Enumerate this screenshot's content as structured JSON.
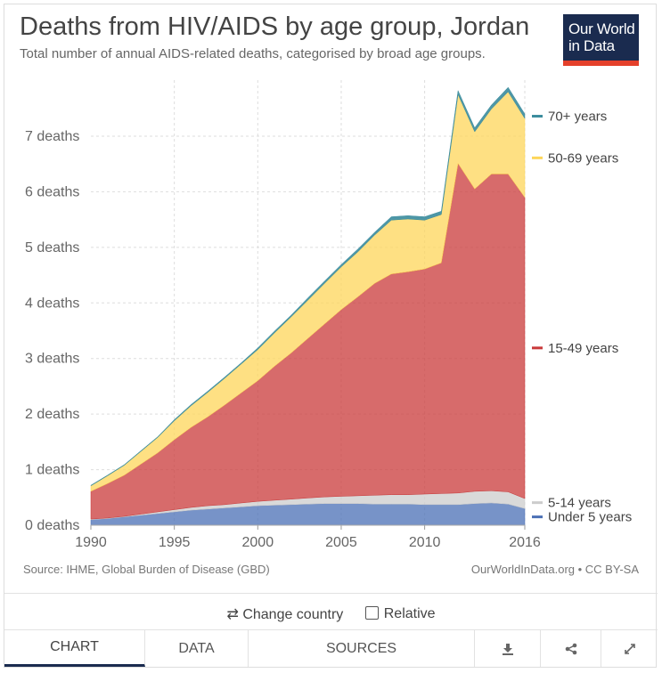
{
  "header": {
    "title": "Deaths from HIV/AIDS by age group, Jordan",
    "subtitle": "Total number of annual AIDS-related deaths, categorised by broad age groups.",
    "logo_line1": "Our World",
    "logo_line2": "in Data"
  },
  "footer": {
    "source": "Source: IHME, Global Burden of Disease (GBD)",
    "credit": "OurWorldInData.org • CC BY-SA"
  },
  "controls": {
    "change_country": "Change country",
    "change_country_icon": "swap-arrows-icon",
    "relative": "Relative"
  },
  "tabs": {
    "chart": "CHART",
    "data": "DATA",
    "sources": "SOURCES",
    "download_icon": "download-icon",
    "share_icon": "share-icon",
    "expand_icon": "expand-icon"
  },
  "chart_data": {
    "type": "area",
    "stacked": true,
    "title": "Deaths from HIV/AIDS by age group, Jordan",
    "subtitle": "Total number of annual AIDS-related deaths, categorised by broad age groups.",
    "x": [
      1990,
      1991,
      1992,
      1993,
      1994,
      1995,
      1996,
      1997,
      1998,
      1999,
      2000,
      2001,
      2002,
      2003,
      2004,
      2005,
      2006,
      2007,
      2008,
      2009,
      2010,
      2011,
      2012,
      2013,
      2014,
      2015,
      2016
    ],
    "ylim": [
      0,
      8
    ],
    "yticks": [
      0,
      1,
      2,
      3,
      4,
      5,
      6,
      7
    ],
    "ytick_labels": [
      "0 deaths",
      "1 deaths",
      "2 deaths",
      "3 deaths",
      "4 deaths",
      "5 deaths",
      "6 deaths",
      "7 deaths"
    ],
    "xticks": [
      1990,
      1995,
      2000,
      2005,
      2010,
      2016
    ],
    "xtick_labels": [
      "1990",
      "1995",
      "2000",
      "2005",
      "2010",
      "2016"
    ],
    "grid": true,
    "legend": "right",
    "series": [
      {
        "name": "Under 5 years",
        "color": "#4a6fb5",
        "values": [
          0.1,
          0.12,
          0.15,
          0.18,
          0.21,
          0.24,
          0.27,
          0.29,
          0.31,
          0.33,
          0.35,
          0.36,
          0.37,
          0.38,
          0.39,
          0.39,
          0.39,
          0.38,
          0.38,
          0.38,
          0.37,
          0.37,
          0.37,
          0.39,
          0.4,
          0.38,
          0.3
        ]
      },
      {
        "name": "5-14 years",
        "color": "#cccccc",
        "values": [
          0.01,
          0.01,
          0.01,
          0.02,
          0.03,
          0.04,
          0.05,
          0.06,
          0.06,
          0.07,
          0.08,
          0.09,
          0.1,
          0.11,
          0.12,
          0.13,
          0.14,
          0.16,
          0.17,
          0.17,
          0.19,
          0.2,
          0.21,
          0.22,
          0.22,
          0.22,
          0.18
        ]
      },
      {
        "name": "15-49 years",
        "color": "#c9393a",
        "values": [
          0.5,
          0.62,
          0.74,
          0.9,
          1.06,
          1.26,
          1.44,
          1.6,
          1.79,
          1.98,
          2.17,
          2.41,
          2.63,
          2.87,
          3.11,
          3.36,
          3.58,
          3.81,
          3.97,
          4.01,
          4.05,
          4.15,
          5.93,
          5.44,
          5.7,
          5.72,
          5.42
        ]
      },
      {
        "name": "50-69 years",
        "color": "#fdd65a",
        "values": [
          0.1,
          0.14,
          0.18,
          0.23,
          0.28,
          0.34,
          0.39,
          0.44,
          0.48,
          0.52,
          0.56,
          0.6,
          0.65,
          0.69,
          0.73,
          0.77,
          0.81,
          0.87,
          0.97,
          0.95,
          0.88,
          0.87,
          1.24,
          1.03,
          1.17,
          1.48,
          1.42
        ]
      },
      {
        "name": "70+ years",
        "color": "#3b8c9d",
        "values": [
          0.01,
          0.01,
          0.01,
          0.01,
          0.01,
          0.02,
          0.02,
          0.02,
          0.02,
          0.02,
          0.03,
          0.03,
          0.03,
          0.04,
          0.04,
          0.04,
          0.05,
          0.05,
          0.06,
          0.06,
          0.06,
          0.06,
          0.07,
          0.07,
          0.07,
          0.08,
          0.08
        ]
      }
    ]
  }
}
